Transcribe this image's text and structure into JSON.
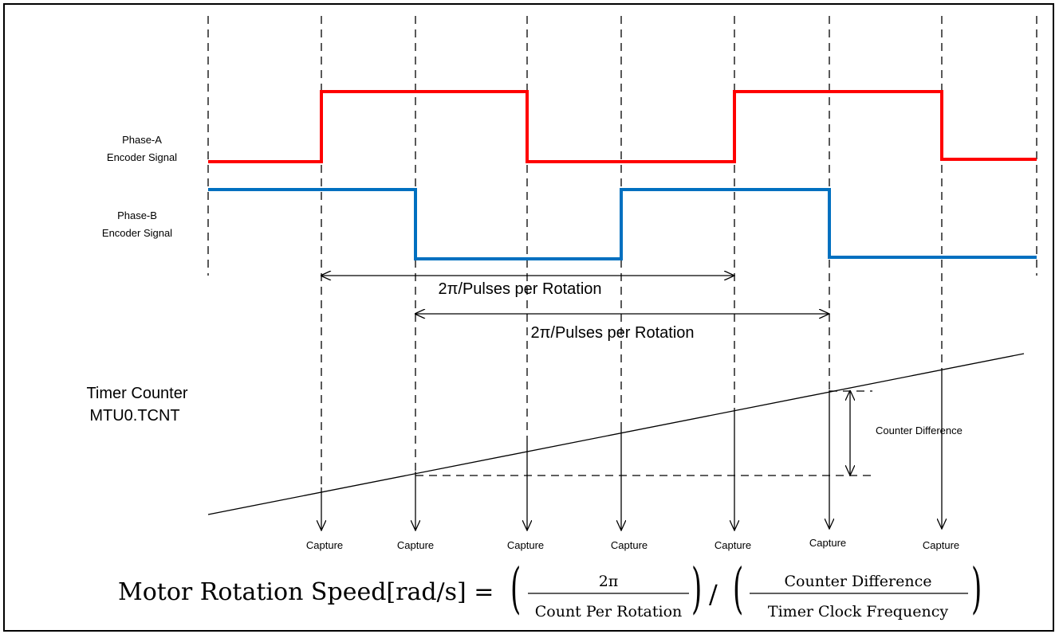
{
  "signals": {
    "phase_a": {
      "line1": "Phase-A",
      "line2": "Encoder Signal",
      "color": "#ff0000"
    },
    "phase_b": {
      "line1": "Phase-B",
      "line2": "Encoder Signal",
      "color": "#0070c0"
    }
  },
  "intervals": [
    {
      "label": "2π/Pulses per Rotation"
    },
    {
      "label": "2π/Pulses per Rotation"
    }
  ],
  "counter": {
    "line1": "Timer Counter",
    "line2": "MTU0.TCNT",
    "difference_label": "Counter Difference"
  },
  "captures": [
    "Capture",
    "Capture",
    "Capture",
    "Capture",
    "Capture",
    "Capture",
    "Capture"
  ],
  "formula": {
    "lhs": "Motor Rotation Speed[rad/s] =",
    "num1": "2π",
    "den1": "Count Per Rotation",
    "divide": "/",
    "num2": "Counter Difference",
    "den2": "Timer Clock Frequency"
  }
}
